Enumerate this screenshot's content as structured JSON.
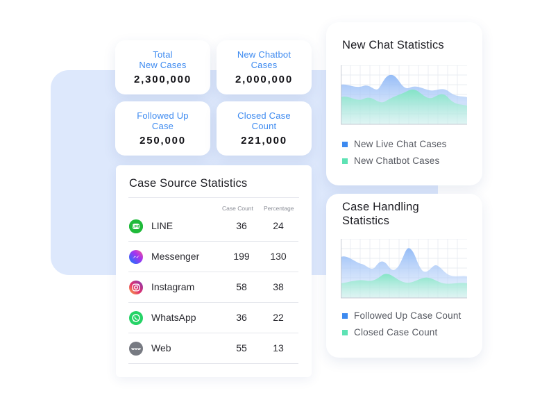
{
  "stats": {
    "total_new_cases": {
      "label_line1": "Total",
      "label_line2": "New Cases",
      "value": "2,300,000"
    },
    "new_chatbot_cases": {
      "label_line1": "New Chatbot",
      "label_line2": "Cases",
      "value": "2,000,000"
    },
    "followed_up_case": {
      "label_line1": "Followed Up",
      "label_line2": "Case",
      "value": "250,000"
    },
    "closed_case_count": {
      "label_line1": "Closed Case",
      "label_line2": "Count",
      "value": "221,000"
    }
  },
  "case_source": {
    "title": "Case Source Statistics",
    "columns": {
      "count": "Case Count",
      "percentage": "Percentage"
    },
    "rows": [
      {
        "name": "LINE",
        "count": "36",
        "percentage": "24",
        "icon": "line-icon"
      },
      {
        "name": "Messenger",
        "count": "199",
        "percentage": "130",
        "icon": "messenger-icon"
      },
      {
        "name": "Instagram",
        "count": "58",
        "percentage": "38",
        "icon": "instagram-icon"
      },
      {
        "name": "WhatsApp",
        "count": "36",
        "percentage": "22",
        "icon": "whatsapp-icon"
      },
      {
        "name": "Web",
        "count": "55",
        "percentage": "13",
        "icon": "web-icon"
      }
    ]
  },
  "new_chat": {
    "title": "New Chat Statistics",
    "legend": [
      {
        "label": "New Live Chat Cases",
        "color": "#3d8af0"
      },
      {
        "label": "New Chatbot Cases",
        "color": "#5ee2b4"
      }
    ]
  },
  "case_handling": {
    "title_line1": "Case Handling",
    "title_line2": "Statistics",
    "legend": [
      {
        "label": "Followed Up Case Count",
        "color": "#3d8af0"
      },
      {
        "label": "Closed Case Count",
        "color": "#5ee2b4"
      }
    ]
  },
  "colors": {
    "accent_blue": "#3d8af0",
    "accent_green": "#5ee2b4",
    "background_panel": "#dde8fc"
  }
}
